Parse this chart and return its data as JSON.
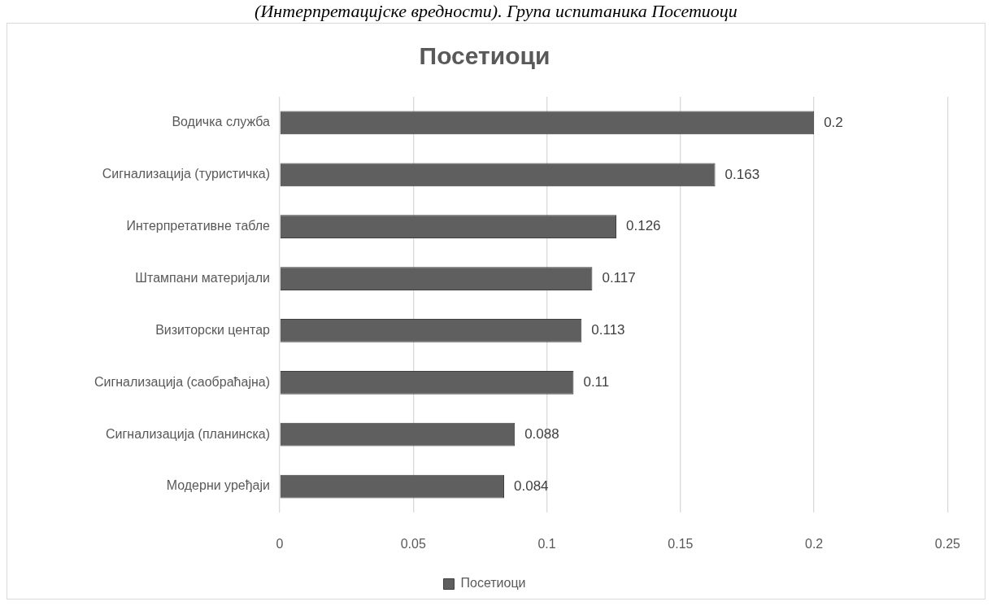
{
  "chart_data": {
    "type": "bar",
    "orientation": "horizontal",
    "title": "Посетиоци",
    "categories": [
      "Водичка служба",
      "Сигнализација (туристичка)",
      "Интерпретативне табле",
      "Штампани материјали",
      "Визиторски центар",
      "Сигнализација (саобраћајна)",
      "Сигнализација (планинска)",
      "Модерни уређаји"
    ],
    "series": [
      {
        "name": "Посетиоци",
        "color": "#5f5f5f",
        "values": [
          0.2,
          0.163,
          0.126,
          0.117,
          0.113,
          0.11,
          0.088,
          0.084
        ]
      }
    ],
    "xlim": [
      0,
      0.25
    ],
    "xticks": [
      0,
      0.05,
      0.1,
      0.15,
      0.2,
      0.25
    ],
    "grid": "x",
    "legend": "bottom",
    "data_labels": true,
    "annotations": [
      "(Интерпретацијске вредности). Група испитаника Посетиоци"
    ]
  }
}
